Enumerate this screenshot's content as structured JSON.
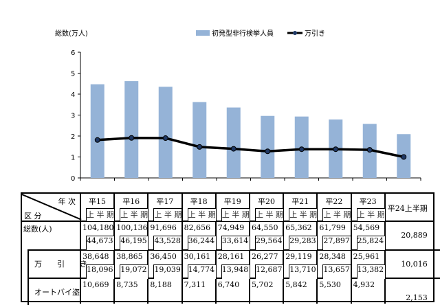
{
  "chart_data": {
    "type": "bar+line",
    "ylabel": "総数(万人)",
    "ylim": [
      0,
      6
    ],
    "yticks": [
      0,
      1,
      2,
      3,
      4,
      5,
      6
    ],
    "categories": [
      "平15",
      "平16",
      "平17",
      "平18",
      "平19",
      "平20",
      "平21",
      "平22",
      "平23",
      "平24"
    ],
    "series": [
      {
        "name": "初発型非行検挙人員",
        "type": "bar",
        "color": "#95b3d7",
        "values": [
          4.47,
          4.62,
          4.35,
          3.62,
          3.36,
          2.96,
          2.93,
          2.79,
          2.58,
          2.09
        ]
      },
      {
        "name": "万引き",
        "type": "line",
        "color": "#000000",
        "values": [
          1.81,
          1.91,
          1.9,
          1.48,
          1.39,
          1.27,
          1.37,
          1.37,
          1.34,
          1.0
        ]
      }
    ],
    "legend": "top-right",
    "grid": false
  },
  "table": {
    "corner_top": "年 次",
    "corner_bottom": "区 分",
    "years": [
      "平15",
      "平16",
      "平17",
      "平18",
      "平19",
      "平20",
      "平21",
      "平22",
      "平23"
    ],
    "half_label": "上 半 期",
    "last_col": "平24上半期",
    "rows": [
      {
        "label": "総数(人)",
        "full": [
          "104,180",
          "100,136",
          "91,696",
          "82,656",
          "74,949",
          "64,550",
          "65,362",
          "61,799",
          "54,569"
        ],
        "half": [
          "44,673",
          "46,195",
          "43,528",
          "36,244",
          "33,614",
          "29,564",
          "29,283",
          "27,897",
          "25,824"
        ],
        "last": "20,889"
      },
      {
        "label": "万　　引　　き",
        "full": [
          "38,648",
          "38,865",
          "36,450",
          "30,161",
          "28,161",
          "26,277",
          "29,119",
          "28,348",
          "25,961"
        ],
        "half": [
          "18,096",
          "19,072",
          "19,039",
          "14,774",
          "13,948",
          "12,687",
          "13,710",
          "13,657",
          "13,382"
        ],
        "last": "10,016"
      },
      {
        "label": "オートバイ盗",
        "full": [
          "10,669",
          "8,735",
          "8,188",
          "7,311",
          "6,740",
          "5,702",
          "5,842",
          "5,530",
          "4,932"
        ],
        "half": [],
        "last": "2,153"
      }
    ]
  }
}
